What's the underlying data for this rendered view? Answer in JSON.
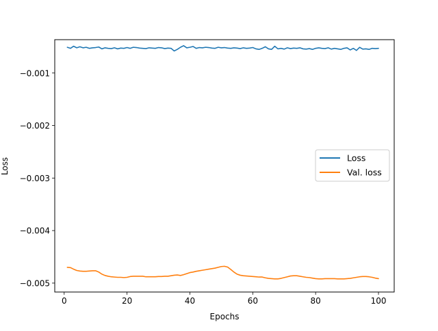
{
  "chart_data": {
    "type": "line",
    "xlabel": "Epochs",
    "ylabel": "Loss",
    "xlim": [
      -3,
      105
    ],
    "ylim": [
      -0.00517,
      -0.000365
    ],
    "xticks": [
      0,
      20,
      40,
      60,
      80,
      100
    ],
    "xtick_labels": [
      "0",
      "20",
      "40",
      "60",
      "80",
      "100"
    ],
    "yticks": [
      -0.001,
      -0.002,
      -0.003,
      -0.004,
      -0.005
    ],
    "ytick_labels": [
      "−0.001",
      "−0.002",
      "−0.003",
      "−0.004",
      "−0.005"
    ],
    "grid": false,
    "legend_position": "center-right",
    "x": [
      1,
      2,
      3,
      4,
      5,
      6,
      7,
      8,
      9,
      10,
      11,
      12,
      13,
      14,
      15,
      16,
      17,
      18,
      19,
      20,
      21,
      22,
      23,
      24,
      25,
      26,
      27,
      28,
      29,
      30,
      31,
      32,
      33,
      34,
      35,
      36,
      37,
      38,
      39,
      40,
      41,
      42,
      43,
      44,
      45,
      46,
      47,
      48,
      49,
      50,
      51,
      52,
      53,
      54,
      55,
      56,
      57,
      58,
      59,
      60,
      61,
      62,
      63,
      64,
      65,
      66,
      67,
      68,
      69,
      70,
      71,
      72,
      73,
      74,
      75,
      76,
      77,
      78,
      79,
      80,
      81,
      82,
      83,
      84,
      85,
      86,
      87,
      88,
      89,
      90,
      91,
      92,
      93,
      94,
      95,
      96,
      97,
      98,
      99,
      100
    ],
    "series": [
      {
        "name": "Loss",
        "color": "#1f77b4",
        "values": [
          -0.00051,
          -0.00053,
          -0.00049,
          -0.00052,
          -0.0005,
          -0.00052,
          -0.00051,
          -0.00053,
          -0.00052,
          -0.000515,
          -0.000505,
          -0.00054,
          -0.00052,
          -0.00053,
          -0.000535,
          -0.00052,
          -0.00054,
          -0.000525,
          -0.00053,
          -0.000515,
          -0.00053,
          -0.00051,
          -0.000515,
          -0.000525,
          -0.00053,
          -0.000535,
          -0.00052,
          -0.000525,
          -0.00053,
          -0.000515,
          -0.00052,
          -0.000535,
          -0.000525,
          -0.00053,
          -0.00058,
          -0.00055,
          -0.00051,
          -0.00048,
          -0.00052,
          -0.00051,
          -0.000495,
          -0.00053,
          -0.000515,
          -0.00052,
          -0.00051,
          -0.000515,
          -0.000525,
          -0.00053,
          -0.00051,
          -0.00052,
          -0.000515,
          -0.000525,
          -0.00053,
          -0.00052,
          -0.000525,
          -0.000535,
          -0.00052,
          -0.00053,
          -0.000525,
          -0.000515,
          -0.00054,
          -0.00055,
          -0.00053,
          -0.0005,
          -0.00054,
          -0.00055,
          -0.00049,
          -0.00054,
          -0.00053,
          -0.000545,
          -0.00052,
          -0.000535,
          -0.000525,
          -0.00053,
          -0.00052,
          -0.00054,
          -0.000545,
          -0.000535,
          -0.00055,
          -0.00053,
          -0.00052,
          -0.00053,
          -0.000535,
          -0.00052,
          -0.000545,
          -0.00053,
          -0.00054,
          -0.00055,
          -0.00053,
          -0.00052,
          -0.00056,
          -0.00053,
          -0.00057,
          -0.00051,
          -0.000545,
          -0.00054,
          -0.00055,
          -0.00053,
          -0.000535,
          -0.00053
        ]
      },
      {
        "name": "Val. loss",
        "color": "#ff7f0e",
        "values": [
          -0.0047,
          -0.004705,
          -0.004735,
          -0.00476,
          -0.00477,
          -0.004775,
          -0.004775,
          -0.00477,
          -0.004765,
          -0.004765,
          -0.00479,
          -0.00483,
          -0.004855,
          -0.00487,
          -0.00488,
          -0.004885,
          -0.00489,
          -0.00489,
          -0.004895,
          -0.00489,
          -0.004875,
          -0.00487,
          -0.00487,
          -0.00487,
          -0.00487,
          -0.00488,
          -0.00488,
          -0.00488,
          -0.00488,
          -0.004875,
          -0.004875,
          -0.00487,
          -0.00487,
          -0.00486,
          -0.00485,
          -0.004845,
          -0.004855,
          -0.00484,
          -0.00482,
          -0.0048,
          -0.00479,
          -0.004775,
          -0.004765,
          -0.004755,
          -0.004745,
          -0.004735,
          -0.004725,
          -0.004715,
          -0.0047,
          -0.004685,
          -0.00468,
          -0.004695,
          -0.00474,
          -0.00479,
          -0.00483,
          -0.00485,
          -0.00486,
          -0.004865,
          -0.00487,
          -0.004875,
          -0.00488,
          -0.004885,
          -0.004885,
          -0.0049,
          -0.00491,
          -0.004915,
          -0.00492,
          -0.00492,
          -0.00491,
          -0.004895,
          -0.00488,
          -0.004865,
          -0.00486,
          -0.00486,
          -0.00487,
          -0.00488,
          -0.00489,
          -0.004895,
          -0.004905,
          -0.004915,
          -0.00492,
          -0.00492,
          -0.004915,
          -0.004915,
          -0.004915,
          -0.004915,
          -0.00492,
          -0.00492,
          -0.00492,
          -0.004915,
          -0.00491,
          -0.0049,
          -0.00489,
          -0.00488,
          -0.004875,
          -0.004875,
          -0.00488,
          -0.00489,
          -0.004905,
          -0.004915
        ]
      }
    ]
  }
}
